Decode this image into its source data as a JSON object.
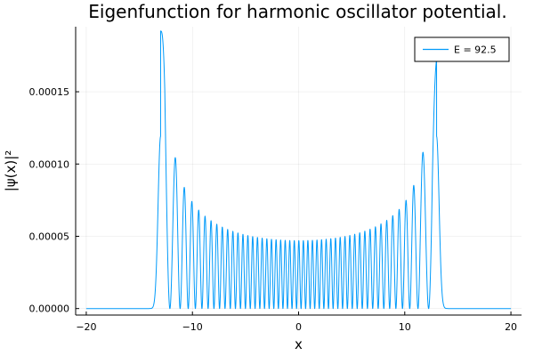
{
  "chart_data": {
    "type": "line",
    "title": "Eigenfunction for harmonic oscillator potential.",
    "xlabel": "x",
    "ylabel": "|ψ(x)|²",
    "xlim": [
      -21,
      21
    ],
    "ylim": [
      -4.5e-06,
      0.000195
    ],
    "x_ticks": [
      -20,
      -10,
      0,
      10,
      20
    ],
    "x_tick_labels": [
      "−20",
      "−10",
      "0",
      "10",
      "20"
    ],
    "y_ticks": [
      0,
      5e-05,
      0.0001,
      0.00015
    ],
    "y_tick_labels": [
      "0.00000",
      "0.00005",
      "0.00010",
      "0.00015"
    ],
    "grid": true,
    "legend_position": "top-right",
    "series": [
      {
        "name": "E = 92.5",
        "color": "#009AFA",
        "x_range": [
          -20,
          20
        ],
        "turning_point": 13.0,
        "center_level": 4.7e-05,
        "peak_max": 0.000192
      }
    ]
  }
}
